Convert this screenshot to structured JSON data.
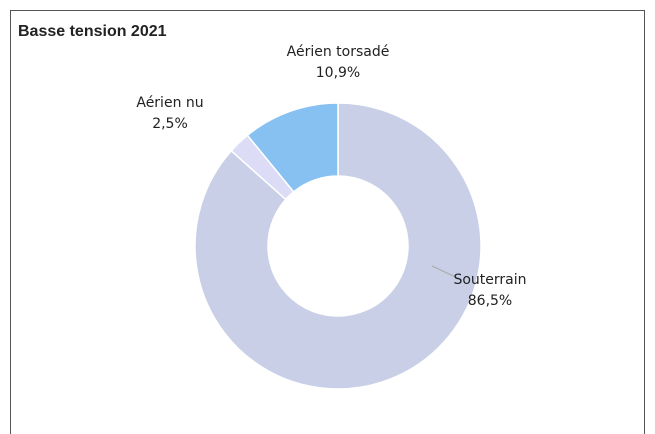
{
  "chart_data": {
    "type": "donut",
    "title": "Basse tension 2021",
    "categories": [
      "Souterrain",
      "Aérien nu",
      "Aérien torsadé"
    ],
    "values": [
      86.5,
      2.5,
      10.9
    ],
    "value_labels": [
      "86,5%",
      "2,5%",
      "10,9%"
    ],
    "colors": [
      "#c8cfe6",
      "#dcdcf6",
      "#86c1f2"
    ]
  }
}
